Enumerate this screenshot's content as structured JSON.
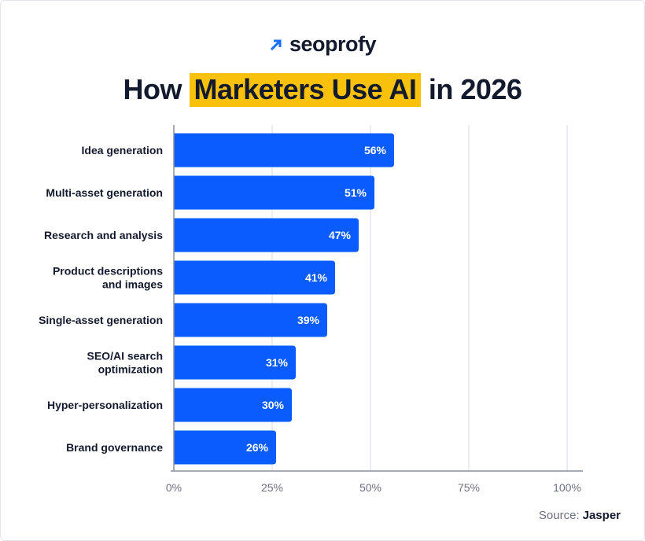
{
  "brand": {
    "name": "seoprofy",
    "icon": "arrow-up-right-icon",
    "color": "#1a6dff"
  },
  "title": {
    "before": "How ",
    "highlight": "Marketers Use AI",
    "after": " in 2026",
    "highlight_color": "#f9c10b"
  },
  "source": {
    "label": "Source:",
    "value": "Jasper"
  },
  "chart_data": {
    "type": "bar",
    "orientation": "horizontal",
    "title": "How Marketers Use AI in 2026",
    "categories": [
      [
        "Idea generation"
      ],
      [
        "Multi-asset generation"
      ],
      [
        "Research and analysis"
      ],
      [
        "Product descriptions",
        "and images"
      ],
      [
        "Single-asset generation"
      ],
      [
        "SEO/AI search",
        "optimization"
      ],
      [
        "Hyper-personalization"
      ],
      [
        "Brand governance"
      ]
    ],
    "values": [
      56,
      51,
      47,
      41,
      39,
      31,
      30,
      26
    ],
    "value_labels": [
      "56%",
      "51%",
      "47%",
      "41%",
      "39%",
      "31%",
      "30%",
      "26%"
    ],
    "xlim": [
      0,
      100
    ],
    "xticks": [
      0,
      25,
      50,
      75,
      100
    ],
    "xtick_labels": [
      "0%",
      "25%",
      "50%",
      "75%",
      "100%"
    ],
    "grid": "vertical",
    "bar_color": "#0a5cff",
    "xlabel": "",
    "ylabel": ""
  }
}
